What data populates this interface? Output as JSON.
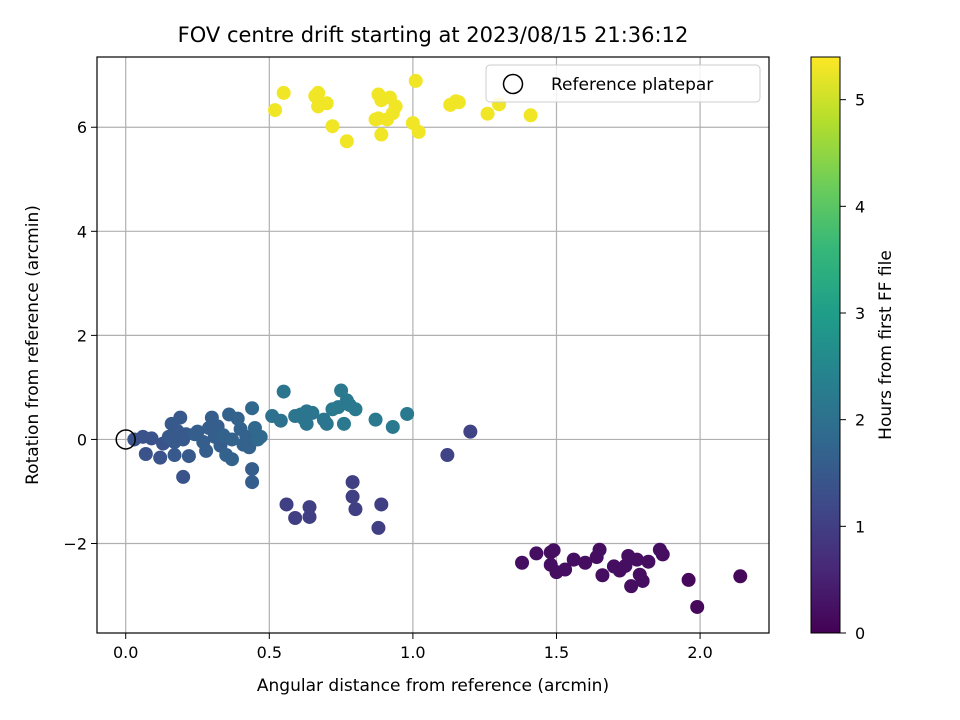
{
  "chart_data": {
    "type": "scatter",
    "title": "FOV centre drift starting at 2023/08/15 21:36:12",
    "xlabel": "Angular distance from reference (arcmin)",
    "ylabel": "Rotation from reference (arcmin)",
    "colorbar_label": "Hours from first FF file",
    "xlim": [
      -0.1,
      2.24
    ],
    "ylim": [
      -3.72,
      7.35
    ],
    "clim": [
      0,
      5.4
    ],
    "xticks": [
      0.0,
      0.5,
      1.0,
      1.5,
      2.0
    ],
    "xtick_labels": [
      "0.0",
      "0.5",
      "1.0",
      "1.5",
      "2.0"
    ],
    "yticks": [
      -2,
      0,
      2,
      4,
      6
    ],
    "ytick_labels": [
      "−2",
      "0",
      "2",
      "4",
      "6"
    ],
    "cticks": [
      0,
      1,
      2,
      3,
      4,
      5
    ],
    "ctick_labels": [
      "0",
      "1",
      "2",
      "3",
      "4",
      "5"
    ],
    "colormap": "viridis",
    "grid": true,
    "legend": {
      "position": "top-right",
      "entries": [
        "Reference platepar"
      ]
    },
    "reference": {
      "x": 0.0,
      "y": 0.0
    },
    "points": [
      {
        "x": 1.38,
        "y": -2.37,
        "c": 0.2
      },
      {
        "x": 1.43,
        "y": -2.19,
        "c": 0.2
      },
      {
        "x": 1.48,
        "y": -2.17,
        "c": 0.2
      },
      {
        "x": 1.48,
        "y": -2.41,
        "c": 0.2
      },
      {
        "x": 1.49,
        "y": -2.13,
        "c": 0.2
      },
      {
        "x": 1.5,
        "y": -2.55,
        "c": 0.2
      },
      {
        "x": 1.53,
        "y": -2.5,
        "c": 0.2
      },
      {
        "x": 1.56,
        "y": -2.31,
        "c": 0.2
      },
      {
        "x": 1.6,
        "y": -2.37,
        "c": 0.2
      },
      {
        "x": 1.64,
        "y": -2.26,
        "c": 0.2
      },
      {
        "x": 1.65,
        "y": -2.12,
        "c": 0.2
      },
      {
        "x": 1.66,
        "y": -2.61,
        "c": 0.2
      },
      {
        "x": 1.7,
        "y": -2.44,
        "c": 0.2
      },
      {
        "x": 1.72,
        "y": -2.52,
        "c": 0.2
      },
      {
        "x": 1.74,
        "y": -2.43,
        "c": 0.2
      },
      {
        "x": 1.75,
        "y": -2.24,
        "c": 0.2
      },
      {
        "x": 1.76,
        "y": -2.82,
        "c": 0.2
      },
      {
        "x": 1.78,
        "y": -2.31,
        "c": 0.2
      },
      {
        "x": 1.79,
        "y": -2.6,
        "c": 0.2
      },
      {
        "x": 1.8,
        "y": -2.72,
        "c": 0.2
      },
      {
        "x": 1.82,
        "y": -2.35,
        "c": 0.2
      },
      {
        "x": 1.86,
        "y": -2.12,
        "c": 0.2
      },
      {
        "x": 1.87,
        "y": -2.21,
        "c": 0.2
      },
      {
        "x": 1.96,
        "y": -2.7,
        "c": 0.1
      },
      {
        "x": 1.99,
        "y": -3.22,
        "c": 0.1
      },
      {
        "x": 2.14,
        "y": -2.63,
        "c": 0.1
      },
      {
        "x": 0.56,
        "y": -1.25,
        "c": 1.0
      },
      {
        "x": 0.59,
        "y": -1.51,
        "c": 1.0
      },
      {
        "x": 0.64,
        "y": -1.3,
        "c": 1.0
      },
      {
        "x": 0.64,
        "y": -1.49,
        "c": 1.0
      },
      {
        "x": 0.79,
        "y": -0.82,
        "c": 1.0
      },
      {
        "x": 0.79,
        "y": -1.1,
        "c": 1.0
      },
      {
        "x": 0.8,
        "y": -1.34,
        "c": 1.0
      },
      {
        "x": 0.88,
        "y": -1.7,
        "c": 1.0
      },
      {
        "x": 0.89,
        "y": -1.25,
        "c": 1.0
      },
      {
        "x": 1.12,
        "y": -0.3,
        "c": 1.1
      },
      {
        "x": 1.2,
        "y": 0.15,
        "c": 1.1
      },
      {
        "x": 0.03,
        "y": 0.0,
        "c": 1.4
      },
      {
        "x": 0.06,
        "y": 0.05,
        "c": 1.4
      },
      {
        "x": 0.07,
        "y": -0.28,
        "c": 1.4
      },
      {
        "x": 0.09,
        "y": 0.02,
        "c": 1.4
      },
      {
        "x": 0.12,
        "y": -0.35,
        "c": 1.4
      },
      {
        "x": 0.13,
        "y": -0.08,
        "c": 1.4
      },
      {
        "x": 0.15,
        "y": 0.05,
        "c": 1.5
      },
      {
        "x": 0.16,
        "y": 0.3,
        "c": 1.5
      },
      {
        "x": 0.17,
        "y": -0.3,
        "c": 1.5
      },
      {
        "x": 0.17,
        "y": -0.05,
        "c": 1.5
      },
      {
        "x": 0.18,
        "y": 0.16,
        "c": 1.5
      },
      {
        "x": 0.19,
        "y": 0.42,
        "c": 1.5
      },
      {
        "x": 0.2,
        "y": -0.72,
        "c": 1.4
      },
      {
        "x": 0.2,
        "y": 0.0,
        "c": 1.5
      },
      {
        "x": 0.21,
        "y": 0.1,
        "c": 1.5
      },
      {
        "x": 0.22,
        "y": -0.32,
        "c": 1.5
      },
      {
        "x": 0.24,
        "y": 0.1,
        "c": 1.6
      },
      {
        "x": 0.25,
        "y": 0.15,
        "c": 1.6
      },
      {
        "x": 0.27,
        "y": -0.05,
        "c": 1.6
      },
      {
        "x": 0.28,
        "y": -0.22,
        "c": 1.6
      },
      {
        "x": 0.29,
        "y": 0.22,
        "c": 1.6
      },
      {
        "x": 0.3,
        "y": 0.42,
        "c": 1.6
      },
      {
        "x": 0.31,
        "y": 0.05,
        "c": 1.6
      },
      {
        "x": 0.32,
        "y": 0.25,
        "c": 1.6
      },
      {
        "x": 0.33,
        "y": -0.12,
        "c": 1.6
      },
      {
        "x": 0.34,
        "y": 0.08,
        "c": 1.7
      },
      {
        "x": 0.35,
        "y": -0.3,
        "c": 1.7
      },
      {
        "x": 0.36,
        "y": 0.48,
        "c": 1.7
      },
      {
        "x": 0.37,
        "y": -0.38,
        "c": 1.7
      },
      {
        "x": 0.37,
        "y": 0.0,
        "c": 1.7
      },
      {
        "x": 0.39,
        "y": 0.4,
        "c": 1.7
      },
      {
        "x": 0.4,
        "y": 0.2,
        "c": 1.7
      },
      {
        "x": 0.41,
        "y": -0.1,
        "c": 1.7
      },
      {
        "x": 0.42,
        "y": 0.05,
        "c": 1.7
      },
      {
        "x": 0.43,
        "y": -0.15,
        "c": 1.7
      },
      {
        "x": 0.44,
        "y": 0.6,
        "c": 1.8
      },
      {
        "x": 0.44,
        "y": -0.57,
        "c": 1.6
      },
      {
        "x": 0.44,
        "y": -0.82,
        "c": 1.6
      },
      {
        "x": 0.45,
        "y": 0.22,
        "c": 1.8
      },
      {
        "x": 0.46,
        "y": 0.0,
        "c": 1.8
      },
      {
        "x": 0.47,
        "y": 0.05,
        "c": 1.8
      },
      {
        "x": 0.51,
        "y": 0.45,
        "c": 2.0
      },
      {
        "x": 0.54,
        "y": 0.36,
        "c": 2.0
      },
      {
        "x": 0.55,
        "y": 0.92,
        "c": 2.1
      },
      {
        "x": 0.59,
        "y": 0.45,
        "c": 2.1
      },
      {
        "x": 0.61,
        "y": 0.48,
        "c": 2.1
      },
      {
        "x": 0.62,
        "y": 0.4,
        "c": 2.1
      },
      {
        "x": 0.63,
        "y": 0.54,
        "c": 2.1
      },
      {
        "x": 0.63,
        "y": 0.3,
        "c": 2.1
      },
      {
        "x": 0.65,
        "y": 0.51,
        "c": 2.1
      },
      {
        "x": 0.69,
        "y": 0.38,
        "c": 2.1
      },
      {
        "x": 0.7,
        "y": 0.3,
        "c": 2.1
      },
      {
        "x": 0.72,
        "y": 0.58,
        "c": 2.2
      },
      {
        "x": 0.74,
        "y": 0.62,
        "c": 2.2
      },
      {
        "x": 0.75,
        "y": 0.94,
        "c": 2.2
      },
      {
        "x": 0.76,
        "y": 0.3,
        "c": 2.2
      },
      {
        "x": 0.77,
        "y": 0.75,
        "c": 2.2
      },
      {
        "x": 0.78,
        "y": 0.66,
        "c": 2.2
      },
      {
        "x": 0.8,
        "y": 0.58,
        "c": 2.2
      },
      {
        "x": 0.87,
        "y": 0.38,
        "c": 2.2
      },
      {
        "x": 0.93,
        "y": 0.24,
        "c": 2.2
      },
      {
        "x": 0.98,
        "y": 0.49,
        "c": 2.2
      },
      {
        "x": 0.52,
        "y": 6.33,
        "c": 5.3
      },
      {
        "x": 0.55,
        "y": 6.66,
        "c": 5.3
      },
      {
        "x": 0.66,
        "y": 6.6,
        "c": 5.3
      },
      {
        "x": 0.67,
        "y": 6.4,
        "c": 5.3
      },
      {
        "x": 0.67,
        "y": 6.66,
        "c": 5.3
      },
      {
        "x": 0.7,
        "y": 6.46,
        "c": 5.3
      },
      {
        "x": 0.72,
        "y": 6.02,
        "c": 5.3
      },
      {
        "x": 0.77,
        "y": 5.73,
        "c": 5.3
      },
      {
        "x": 0.87,
        "y": 6.15,
        "c": 5.3
      },
      {
        "x": 0.88,
        "y": 6.63,
        "c": 5.3
      },
      {
        "x": 0.88,
        "y": 6.17,
        "c": 5.3
      },
      {
        "x": 0.89,
        "y": 6.52,
        "c": 5.3
      },
      {
        "x": 0.89,
        "y": 5.86,
        "c": 5.3
      },
      {
        "x": 0.91,
        "y": 6.15,
        "c": 5.3
      },
      {
        "x": 0.92,
        "y": 6.57,
        "c": 5.3
      },
      {
        "x": 0.93,
        "y": 6.27,
        "c": 5.3
      },
      {
        "x": 0.94,
        "y": 6.4,
        "c": 5.3
      },
      {
        "x": 1.0,
        "y": 6.08,
        "c": 5.3
      },
      {
        "x": 1.01,
        "y": 6.89,
        "c": 5.3
      },
      {
        "x": 1.02,
        "y": 5.91,
        "c": 5.3
      },
      {
        "x": 1.13,
        "y": 6.43,
        "c": 5.3
      },
      {
        "x": 1.15,
        "y": 6.5,
        "c": 5.3
      },
      {
        "x": 1.16,
        "y": 6.48,
        "c": 5.3
      },
      {
        "x": 1.26,
        "y": 6.26,
        "c": 5.3
      },
      {
        "x": 1.3,
        "y": 6.44,
        "c": 5.3
      },
      {
        "x": 1.41,
        "y": 6.23,
        "c": 5.3
      }
    ]
  }
}
